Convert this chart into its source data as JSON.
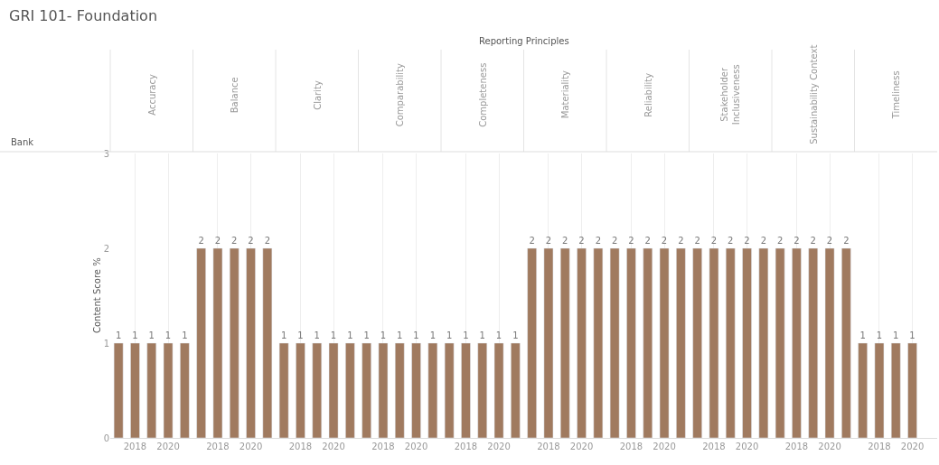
{
  "chart_data": [
    {
      "type": "bar",
      "title": "Accuracy",
      "annotations": [
        "GRI 101- Foundation",
        "Reporting Principles",
        "Bank"
      ],
      "ylabel": "Content Score %",
      "categories": [
        null,
        "2018",
        null,
        "2020",
        null
      ],
      "values": [
        1,
        1,
        1,
        1,
        1
      ],
      "color": "#a07a5f",
      "ylim": [
        0,
        3
      ],
      "yticks": [
        0,
        1,
        2,
        3
      ],
      "grid": "x",
      "data_labels": true
    },
    {
      "type": "bar",
      "title": "Balance",
      "categories": [
        null,
        "2018",
        null,
        "2020",
        null
      ],
      "values": [
        2,
        2,
        2,
        2,
        2
      ],
      "color": "#a07a5f",
      "ylim": [
        0,
        3
      ],
      "grid": "x",
      "data_labels": true,
      "tick_labels": "x"
    },
    {
      "type": "bar",
      "title": "Clarity",
      "categories": [
        null,
        "2018",
        null,
        "2020",
        null
      ],
      "values": [
        1,
        1,
        1,
        1,
        1
      ],
      "color": "#a07a5f",
      "ylim": [
        0,
        3
      ],
      "grid": "x",
      "data_labels": true,
      "tick_labels": "x"
    },
    {
      "type": "bar",
      "title": "Comparability",
      "categories": [
        null,
        "2018",
        null,
        "2020",
        null
      ],
      "values": [
        1,
        1,
        1,
        1,
        1
      ],
      "color": "#a07a5f",
      "ylim": [
        0,
        3
      ],
      "grid": "x",
      "data_labels": true,
      "tick_labels": "x"
    },
    {
      "type": "bar",
      "title": "Completeness",
      "categories": [
        null,
        "2018",
        null,
        "2020",
        null
      ],
      "values": [
        1,
        1,
        1,
        1,
        1
      ],
      "color": "#a07a5f",
      "ylim": [
        0,
        3
      ],
      "grid": "x",
      "data_labels": true,
      "tick_labels": "x"
    },
    {
      "type": "bar",
      "title": "Materiality",
      "categories": [
        null,
        "2018",
        null,
        "2020",
        null
      ],
      "values": [
        2,
        2,
        2,
        2,
        2
      ],
      "color": "#a07a5f",
      "ylim": [
        0,
        3
      ],
      "grid": "x",
      "data_labels": true,
      "tick_labels": "x"
    },
    {
      "type": "bar",
      "title": "Reliability",
      "categories": [
        null,
        "2018",
        null,
        "2020",
        null
      ],
      "values": [
        2,
        2,
        2,
        2,
        2
      ],
      "color": "#a07a5f",
      "ylim": [
        0,
        3
      ],
      "grid": "x",
      "data_labels": true,
      "tick_labels": "x"
    },
    {
      "type": "bar",
      "title": "Stakeholder Inclusiveness",
      "categories": [
        null,
        "2018",
        null,
        "2020",
        null
      ],
      "values": [
        2,
        2,
        2,
        2,
        2
      ],
      "color": "#a07a5f",
      "ylim": [
        0,
        3
      ],
      "grid": "x",
      "data_labels": true,
      "tick_labels": "x"
    },
    {
      "type": "bar",
      "title": "Sustainability Context",
      "categories": [
        null,
        "2018",
        null,
        "2020",
        null
      ],
      "values": [
        2,
        2,
        2,
        2,
        2
      ],
      "color": "#a07a5f",
      "ylim": [
        0,
        3
      ],
      "grid": "x",
      "data_labels": true,
      "tick_labels": "x"
    },
    {
      "type": "bar",
      "title": "Timeliness",
      "categories": [
        null,
        "2018",
        null,
        "2020",
        null
      ],
      "values": [
        1,
        1,
        1,
        1,
        null
      ],
      "color": "#a07a5f",
      "ylim": [
        0,
        3
      ],
      "grid": "x",
      "data_labels": true,
      "tick_labels": "x"
    }
  ]
}
